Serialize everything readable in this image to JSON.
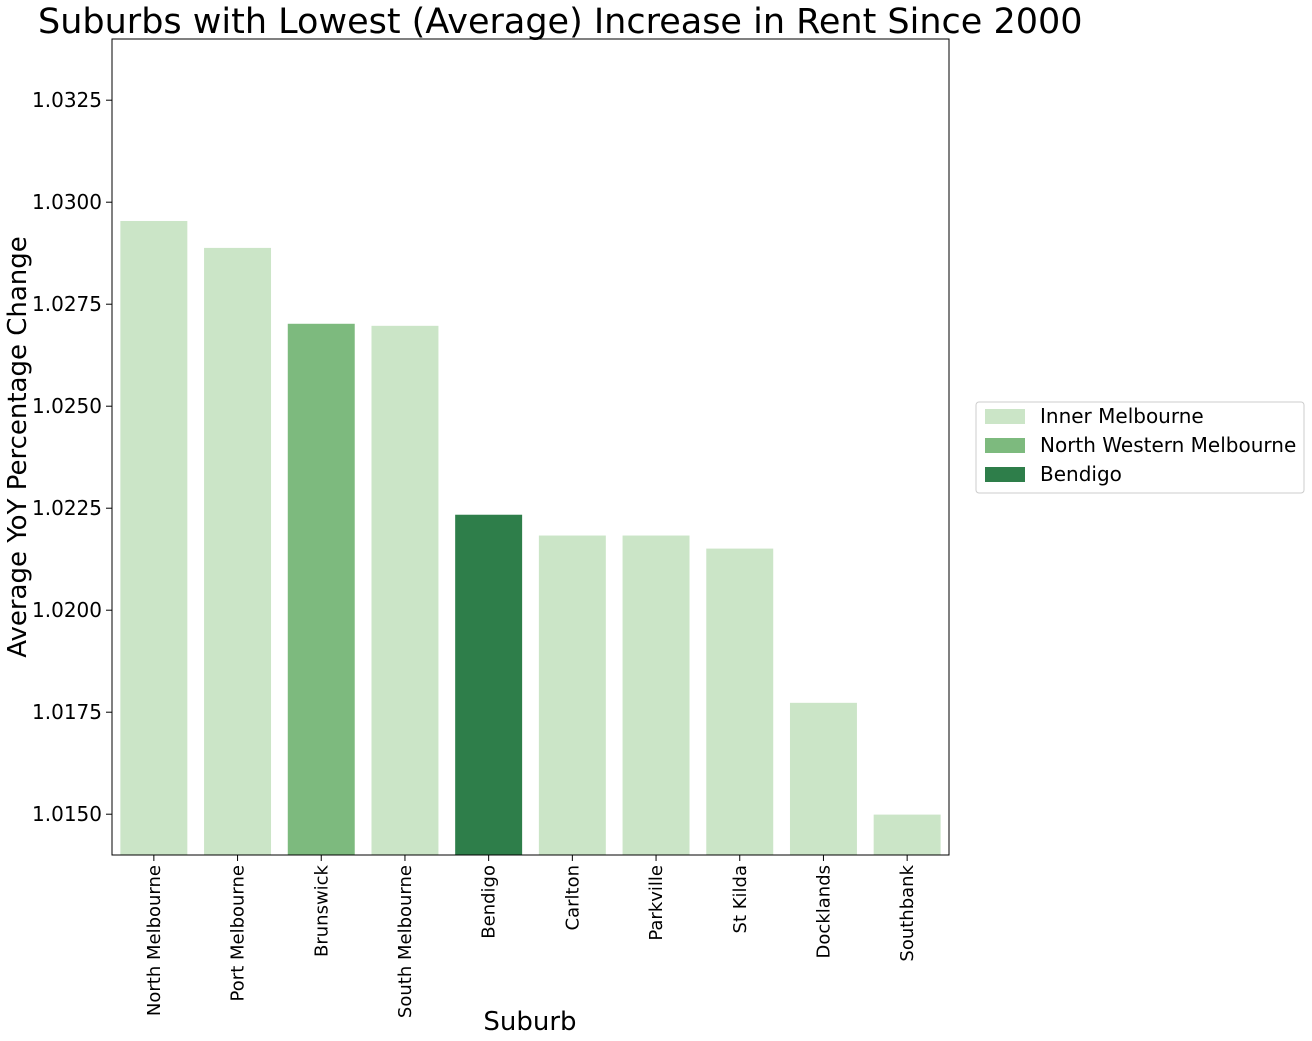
{
  "chart_data": {
    "type": "bar",
    "title": "Suburbs with Lowest (Average) Increase in Rent Since 2000",
    "xlabel": "Suburb",
    "ylabel": "Average YoY Percentage Change",
    "ylim": [
      1.014,
      1.034
    ],
    "yticks": [
      "1.0150",
      "1.0175",
      "1.0200",
      "1.0225",
      "1.0250",
      "1.0275",
      "1.0300",
      "1.0325"
    ],
    "categories": [
      "North Melbourne",
      "Port Melbourne",
      "Brunswick",
      "South Melbourne",
      "Bendigo",
      "Carlton",
      "Parkville",
      "St Kilda",
      "Docklands",
      "Southbank"
    ],
    "values": [
      1.02954,
      1.02888,
      1.02702,
      1.02697,
      1.02234,
      1.02183,
      1.02183,
      1.02151,
      1.01773,
      1.01499
    ],
    "groups": [
      "Inner Melbourne",
      "Inner Melbourne",
      "North Western Melbourne",
      "Inner Melbourne",
      "Bendigo",
      "Inner Melbourne",
      "Inner Melbourne",
      "Inner Melbourne",
      "Inner Melbourne",
      "Inner Melbourne"
    ],
    "legend": [
      {
        "name": "Inner Melbourne",
        "color": "#cbe5c7"
      },
      {
        "name": "North Western Melbourne",
        "color": "#7dba7e"
      },
      {
        "name": "Bendigo",
        "color": "#2e7e4a"
      }
    ],
    "legend_position": "right",
    "grid": false
  }
}
